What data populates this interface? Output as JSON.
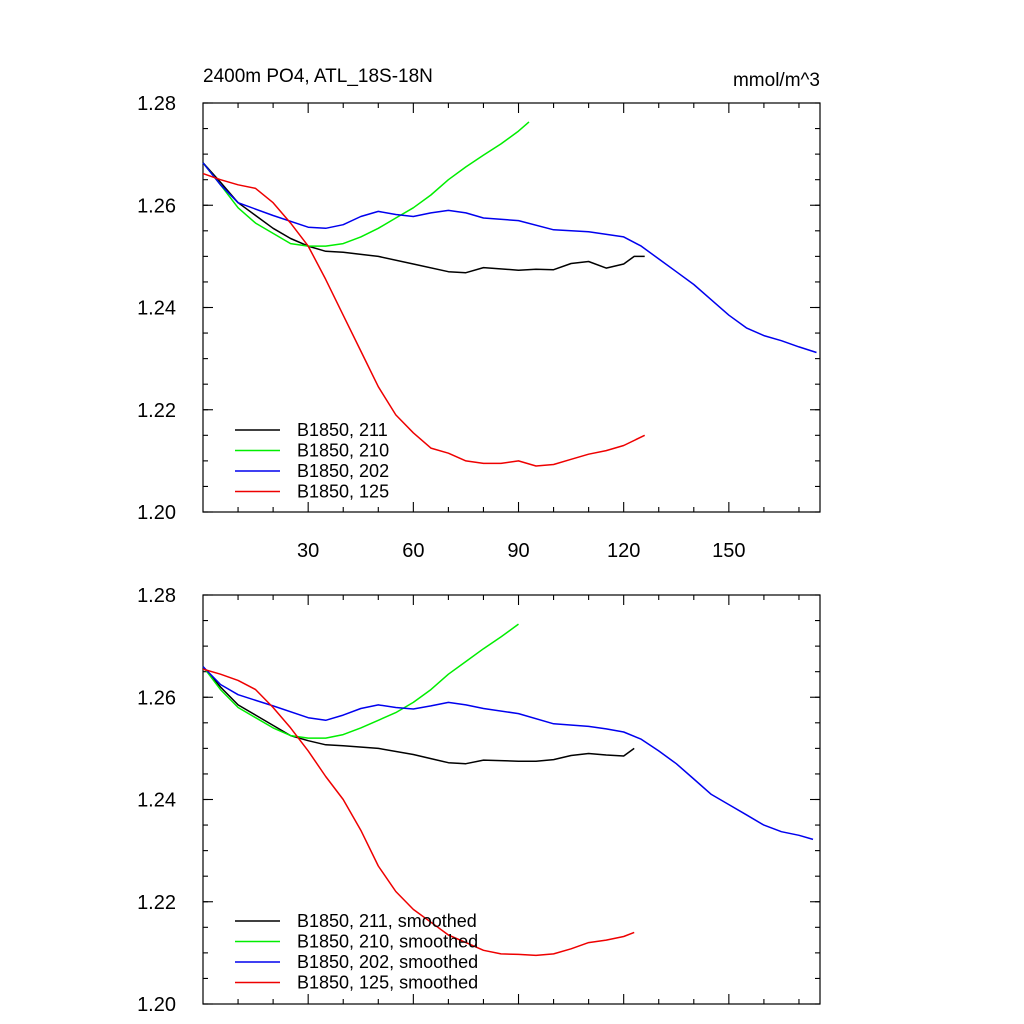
{
  "title_left": "2400m PO4, ATL_18S-18N",
  "title_right": "mmol/m^3",
  "chart_data": [
    {
      "type": "line",
      "panel": "top",
      "xlim": [
        0,
        176
      ],
      "ylim": [
        1.2,
        1.28
      ],
      "xticks": [
        30,
        60,
        90,
        120,
        150
      ],
      "xtick_labels": [
        "30",
        "60",
        "90",
        "120",
        "150"
      ],
      "yticks": [
        1.2,
        1.22,
        1.24,
        1.26,
        1.28
      ],
      "ytick_labels": [
        "1.20",
        "1.22",
        "1.24",
        "1.26",
        "1.28"
      ],
      "grid": false,
      "legend_position": "bottom-left",
      "series": [
        {
          "name": "B1850, 211",
          "color": "#000000",
          "x": [
            0,
            5,
            10,
            15,
            20,
            25,
            30,
            35,
            40,
            50,
            60,
            70,
            75,
            80,
            90,
            95,
            100,
            105,
            110,
            115,
            120,
            123,
            126
          ],
          "y": [
            1.2683,
            1.2645,
            1.2605,
            1.258,
            1.2555,
            1.2535,
            1.252,
            1.251,
            1.2508,
            1.25,
            1.2485,
            1.247,
            1.2468,
            1.2478,
            1.2473,
            1.2475,
            1.2474,
            1.2486,
            1.249,
            1.2477,
            1.2485,
            1.25,
            1.25
          ]
        },
        {
          "name": "B1850, 210",
          "color": "#00ee00",
          "x": [
            0,
            5,
            10,
            15,
            20,
            25,
            30,
            35,
            40,
            45,
            50,
            55,
            60,
            65,
            70,
            75,
            80,
            85,
            90,
            93
          ],
          "y": [
            1.2683,
            1.264,
            1.2595,
            1.2565,
            1.2545,
            1.2525,
            1.252,
            1.252,
            1.2525,
            1.2538,
            1.2555,
            1.2575,
            1.2595,
            1.262,
            1.265,
            1.2675,
            1.2698,
            1.272,
            1.2745,
            1.2763
          ]
        },
        {
          "name": "B1850, 202",
          "color": "#0000ee",
          "x": [
            0,
            5,
            10,
            20,
            30,
            35,
            40,
            45,
            50,
            55,
            60,
            65,
            70,
            75,
            80,
            90,
            100,
            105,
            110,
            120,
            125,
            130,
            135,
            140,
            145,
            150,
            155,
            160,
            165,
            170,
            175
          ],
          "y": [
            1.2683,
            1.264,
            1.2605,
            1.258,
            1.2557,
            1.2555,
            1.2562,
            1.2578,
            1.2588,
            1.2582,
            1.2578,
            1.2585,
            1.259,
            1.2585,
            1.2575,
            1.257,
            1.2552,
            1.255,
            1.2548,
            1.2538,
            1.252,
            1.2495,
            1.247,
            1.2445,
            1.2415,
            1.2385,
            1.236,
            1.2345,
            1.2335,
            1.2323,
            1.2312
          ]
        },
        {
          "name": "B1850, 125",
          "color": "#ee0000",
          "x": [
            0,
            5,
            10,
            15,
            20,
            25,
            30,
            35,
            40,
            45,
            50,
            55,
            60,
            65,
            70,
            75,
            80,
            85,
            90,
            95,
            100,
            105,
            110,
            115,
            120,
            126
          ],
          "y": [
            1.2662,
            1.265,
            1.264,
            1.2633,
            1.2605,
            1.2565,
            1.252,
            1.2455,
            1.2385,
            1.2315,
            1.2245,
            1.219,
            1.2155,
            1.2125,
            1.2115,
            1.21,
            1.2095,
            1.2095,
            1.21,
            1.209,
            1.2093,
            1.2103,
            1.2113,
            1.212,
            1.213,
            1.215
          ]
        }
      ]
    },
    {
      "type": "line",
      "panel": "bottom",
      "xlim": [
        0,
        176
      ],
      "ylim": [
        1.2,
        1.28
      ],
      "yticks": [
        1.2,
        1.22,
        1.24,
        1.26,
        1.28
      ],
      "ytick_labels": [
        "1.20",
        "1.22",
        "1.24",
        "1.26",
        "1.28"
      ],
      "grid": false,
      "legend_position": "bottom-left",
      "series": [
        {
          "name": "B1850, 211, smoothed",
          "color": "#000000",
          "x": [
            0,
            5,
            10,
            15,
            20,
            25,
            30,
            35,
            40,
            50,
            60,
            65,
            70,
            75,
            80,
            90,
            95,
            100,
            105,
            110,
            115,
            120,
            123
          ],
          "y": [
            1.266,
            1.262,
            1.2585,
            1.2565,
            1.2545,
            1.2525,
            1.2515,
            1.2507,
            1.2505,
            1.25,
            1.2488,
            1.248,
            1.2472,
            1.247,
            1.2477,
            1.2475,
            1.2475,
            1.2478,
            1.2486,
            1.249,
            1.2487,
            1.2485,
            1.25
          ]
        },
        {
          "name": "B1850, 210, smoothed",
          "color": "#00ee00",
          "x": [
            0,
            5,
            10,
            15,
            20,
            25,
            30,
            35,
            40,
            45,
            50,
            55,
            60,
            65,
            70,
            75,
            80,
            85,
            90
          ],
          "y": [
            1.266,
            1.2615,
            1.258,
            1.256,
            1.254,
            1.2525,
            1.252,
            1.252,
            1.2527,
            1.254,
            1.2555,
            1.257,
            1.259,
            1.2615,
            1.2645,
            1.267,
            1.2695,
            1.2718,
            1.2743
          ]
        },
        {
          "name": "B1850, 202, smoothed",
          "color": "#0000ee",
          "x": [
            0,
            5,
            10,
            20,
            30,
            35,
            40,
            45,
            50,
            55,
            60,
            65,
            70,
            75,
            80,
            90,
            100,
            110,
            115,
            120,
            125,
            130,
            135,
            140,
            145,
            150,
            155,
            160,
            165,
            170,
            174
          ],
          "y": [
            1.266,
            1.2625,
            1.2605,
            1.2583,
            1.256,
            1.2555,
            1.2565,
            1.2578,
            1.2585,
            1.258,
            1.2577,
            1.2583,
            1.259,
            1.2585,
            1.2578,
            1.2568,
            1.2548,
            1.2543,
            1.2538,
            1.2532,
            1.2518,
            1.2495,
            1.247,
            1.244,
            1.241,
            1.239,
            1.237,
            1.235,
            1.2337,
            1.233,
            1.2322
          ]
        },
        {
          "name": "B1850, 125, smoothed",
          "color": "#ee0000",
          "x": [
            0,
            5,
            10,
            15,
            20,
            25,
            30,
            35,
            40,
            45,
            50,
            55,
            60,
            65,
            70,
            75,
            80,
            85,
            90,
            95,
            100,
            105,
            110,
            115,
            120,
            123
          ],
          "y": [
            1.2655,
            1.2645,
            1.2633,
            1.2615,
            1.258,
            1.254,
            1.2495,
            1.2445,
            1.24,
            1.234,
            1.227,
            1.222,
            1.2185,
            1.216,
            1.2135,
            1.212,
            1.2105,
            1.2098,
            1.2097,
            1.2095,
            1.2098,
            1.2108,
            1.212,
            1.2125,
            1.2132,
            1.214
          ]
        }
      ]
    }
  ]
}
